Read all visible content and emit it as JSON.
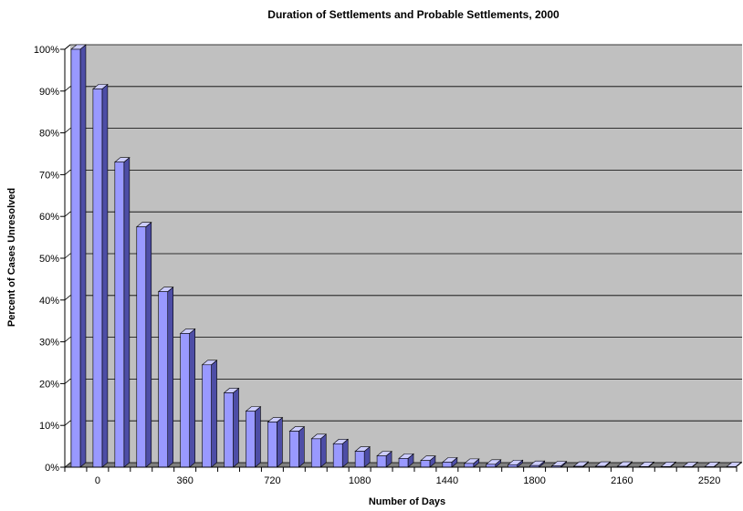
{
  "chart_data": {
    "type": "bar",
    "title": "Duration of Settlements and Probable Settlements, 2000",
    "xlabel": "Number of Days",
    "ylabel": "Percent of Cases Unresolved",
    "x_tick_labels": [
      "0",
      "360",
      "720",
      "1080",
      "1440",
      "1800",
      "2160",
      "2520"
    ],
    "y_tick_labels": [
      "0%",
      "10%",
      "20%",
      "30%",
      "40%",
      "50%",
      "60%",
      "70%",
      "80%",
      "90%",
      "100%"
    ],
    "ylim": [
      0,
      100
    ],
    "grid": true,
    "legend": "none",
    "categories": [
      "-90",
      "0",
      "90",
      "180",
      "270",
      "360",
      "450",
      "540",
      "630",
      "720",
      "810",
      "900",
      "990",
      "1080",
      "1170",
      "1260",
      "1350",
      "1440",
      "1530",
      "1620",
      "1710",
      "1800",
      "1890",
      "1980",
      "2070",
      "2160",
      "2250",
      "2340",
      "2430",
      "2520",
      "2610"
    ],
    "values": [
      100,
      90.5,
      73,
      57.5,
      42,
      32,
      24.5,
      17.8,
      13.4,
      10.8,
      8.6,
      6.8,
      5.6,
      3.8,
      2.7,
      2.1,
      1.6,
      1.2,
      0.9,
      0.7,
      0.6,
      0.4,
      0.3,
      0.2,
      0.2,
      0.2,
      0.15,
      0.15,
      0.1,
      0.1,
      0.1
    ],
    "colors": {
      "plot_background": "#c0c0c0",
      "bar_front": "#9999ff",
      "bar_top": "#ccccff",
      "bar_side": "#4d4da6",
      "gridline": "#000000"
    }
  }
}
